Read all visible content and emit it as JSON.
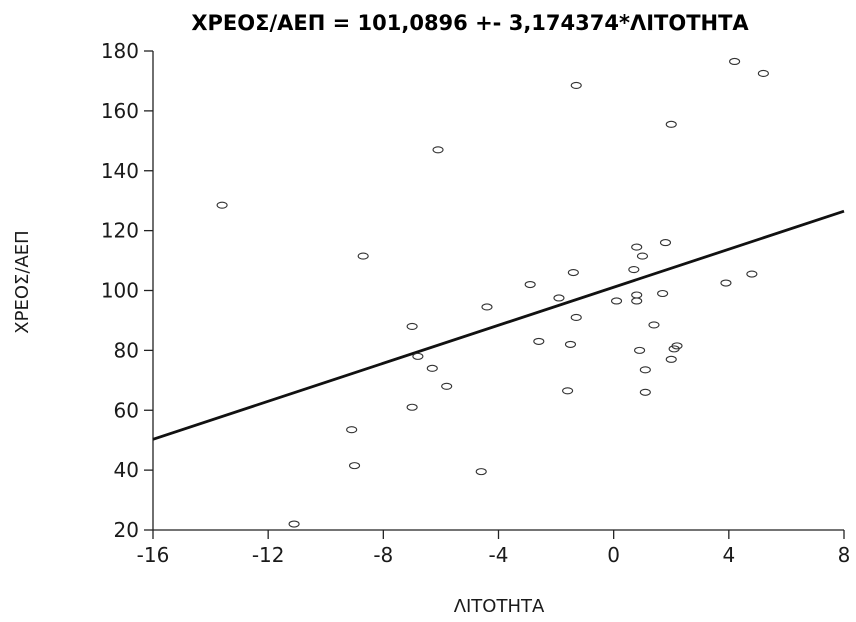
{
  "chart_data": {
    "type": "scatter",
    "title": "ΧΡΕΟΣ/ΑΕΠ = 101,0896 +- 3,174374*ΛΙΤΟΤΗΤΑ",
    "xlabel": "ΛΙΤΟΤΗΤΑ",
    "ylabel": "ΧΡΕΟΣ/ΑΕΠ",
    "xlim": [
      -16,
      8
    ],
    "ylim": [
      20,
      180
    ],
    "xticks": [
      -16,
      -12,
      -8,
      -4,
      0,
      4,
      8
    ],
    "yticks": [
      20,
      40,
      60,
      80,
      100,
      120,
      140,
      160,
      180
    ],
    "grid": false,
    "fit_line": {
      "intercept": 101.0896,
      "slope": 3.174374
    },
    "points": [
      [
        -13.6,
        128.5
      ],
      [
        -11.1,
        22
      ],
      [
        -9.1,
        53.5
      ],
      [
        -9.0,
        41.5
      ],
      [
        -8.7,
        111.5
      ],
      [
        -7.0,
        88
      ],
      [
        -7.0,
        61
      ],
      [
        -6.8,
        78
      ],
      [
        -6.3,
        74
      ],
      [
        -6.1,
        147
      ],
      [
        -5.8,
        68
      ],
      [
        -4.6,
        39.5
      ],
      [
        -4.4,
        94.5
      ],
      [
        -2.9,
        102
      ],
      [
        -2.6,
        83
      ],
      [
        -1.9,
        97.5
      ],
      [
        -1.6,
        66.5
      ],
      [
        -1.5,
        82
      ],
      [
        -1.4,
        106
      ],
      [
        -1.3,
        168.5
      ],
      [
        -1.3,
        91
      ],
      [
        0.1,
        96.5
      ],
      [
        0.7,
        107
      ],
      [
        0.8,
        98.5
      ],
      [
        0.8,
        96.5
      ],
      [
        0.8,
        114.5
      ],
      [
        0.9,
        80
      ],
      [
        1.0,
        111.5
      ],
      [
        1.1,
        73.5
      ],
      [
        1.1,
        66
      ],
      [
        1.4,
        88.5
      ],
      [
        1.7,
        99
      ],
      [
        1.8,
        116
      ],
      [
        2.0,
        155.5
      ],
      [
        2.0,
        77
      ],
      [
        2.1,
        80.5
      ],
      [
        2.2,
        81.5
      ],
      [
        3.9,
        102.5
      ],
      [
        4.2,
        176.5
      ],
      [
        4.8,
        105.5
      ],
      [
        5.2,
        172.5
      ]
    ]
  }
}
